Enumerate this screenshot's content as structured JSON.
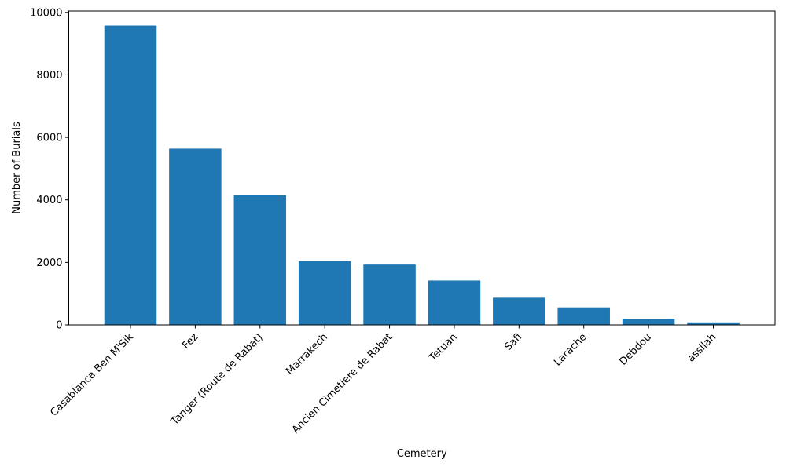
{
  "chart_data": {
    "type": "bar",
    "xlabel": "Cemetery",
    "ylabel": "Number of Burials",
    "categories": [
      "Casablanca Ben M'Sik",
      "Fez",
      "Tanger (Route de Rabat)",
      "Marrakech",
      "Ancien Cimetiere de Rabat",
      "Tetuan",
      "Safi",
      "Larache",
      "Debdou",
      "assilah"
    ],
    "values": [
      9580,
      5640,
      4150,
      2040,
      1930,
      1420,
      870,
      560,
      200,
      80
    ],
    "ylim": [
      0,
      10045
    ],
    "yticks": [
      0,
      2000,
      4000,
      6000,
      8000,
      10000
    ],
    "grid": false,
    "bar_color": "#1f77b4"
  }
}
